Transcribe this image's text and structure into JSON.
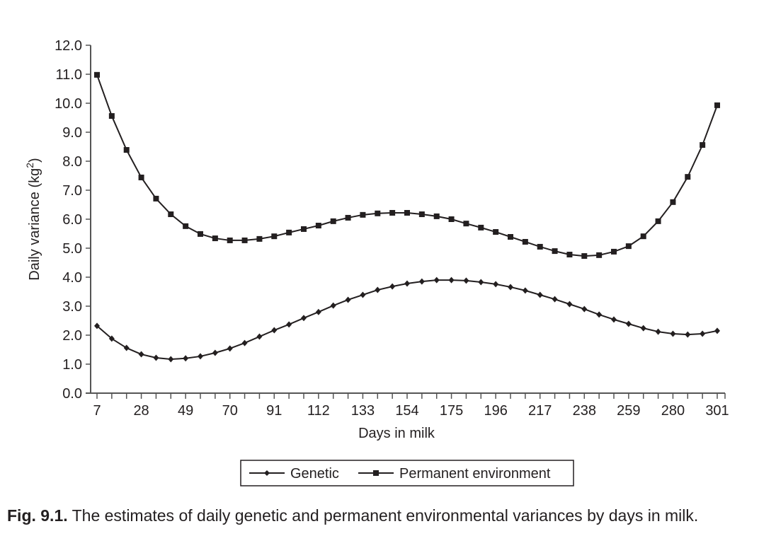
{
  "chart_data": {
    "type": "line",
    "title": "",
    "xlabel": "Days in milk",
    "ylabel": "Daily variance (kg²)",
    "ylabel_base": "Daily variance (kg",
    "ylabel_sup": "2",
    "ylabel_close": ")",
    "ylim": [
      0,
      12
    ],
    "xlim": [
      7,
      301
    ],
    "grid": false,
    "legend_position": "bottom-center",
    "y_ticks": [
      "0.0",
      "1.0",
      "2.0",
      "3.0",
      "4.0",
      "5.0",
      "6.0",
      "7.0",
      "8.0",
      "9.0",
      "10.0",
      "11.0",
      "12.0"
    ],
    "x_tick_labels": [
      "7",
      "28",
      "49",
      "70",
      "91",
      "112",
      "133",
      "154",
      "175",
      "196",
      "217",
      "238",
      "259",
      "280",
      "301"
    ],
    "x": [
      7,
      14,
      21,
      28,
      35,
      42,
      49,
      56,
      63,
      70,
      77,
      84,
      91,
      98,
      105,
      112,
      119,
      126,
      133,
      140,
      147,
      154,
      161,
      168,
      175,
      182,
      189,
      196,
      203,
      210,
      217,
      224,
      231,
      238,
      245,
      252,
      259,
      266,
      273,
      280,
      287,
      294,
      301
    ],
    "series": [
      {
        "name": "Genetic",
        "marker": "diamond",
        "values": [
          2.32,
          1.88,
          1.56,
          1.34,
          1.22,
          1.17,
          1.2,
          1.27,
          1.39,
          1.54,
          1.73,
          1.95,
          2.17,
          2.37,
          2.59,
          2.8,
          3.02,
          3.22,
          3.39,
          3.56,
          3.68,
          3.78,
          3.85,
          3.9,
          3.9,
          3.88,
          3.83,
          3.76,
          3.66,
          3.54,
          3.39,
          3.24,
          3.07,
          2.9,
          2.71,
          2.54,
          2.39,
          2.24,
          2.12,
          2.05,
          2.02,
          2.05,
          2.15
        ]
      },
      {
        "name": "Permanent environment",
        "marker": "square",
        "values": [
          10.98,
          9.56,
          8.39,
          7.44,
          6.71,
          6.17,
          5.76,
          5.49,
          5.34,
          5.27,
          5.27,
          5.32,
          5.41,
          5.54,
          5.66,
          5.78,
          5.93,
          6.05,
          6.15,
          6.2,
          6.22,
          6.22,
          6.17,
          6.1,
          6.0,
          5.85,
          5.71,
          5.56,
          5.39,
          5.22,
          5.05,
          4.9,
          4.78,
          4.73,
          4.76,
          4.88,
          5.07,
          5.41,
          5.93,
          6.59,
          7.46,
          8.56,
          9.93
        ]
      }
    ]
  },
  "caption": {
    "label": "Fig. 9.1.",
    "text": " The estimates of daily genetic and permanent environmental variances by days in milk."
  },
  "colors": {
    "ink": "#231f20",
    "axis": "#555555"
  }
}
